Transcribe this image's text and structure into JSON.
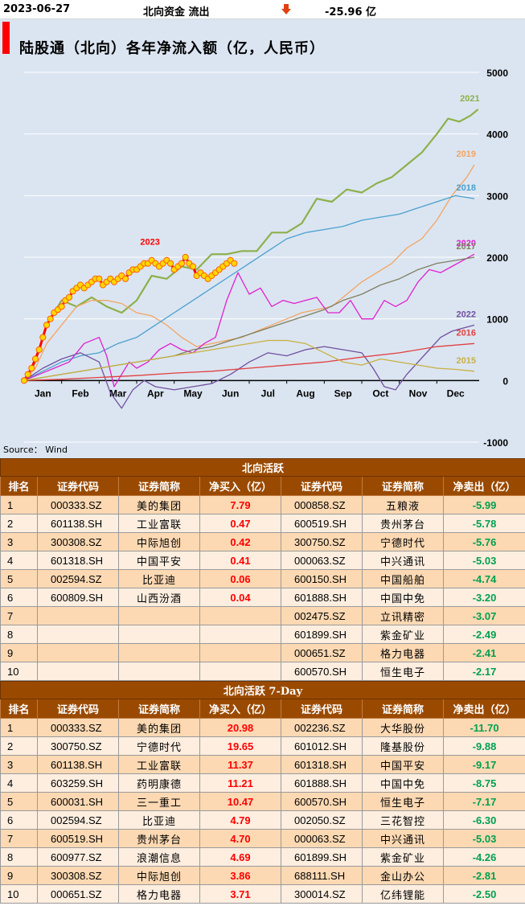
{
  "header": {
    "date": "2023-06-27",
    "label": "北向资金 流出",
    "value": "-25.96 亿",
    "arrow_color": "#e04010"
  },
  "chart": {
    "title": "陆股通（北向）各年净流入额（亿，人民币）",
    "source": "Source： Wind"
  },
  "chart_data": {
    "type": "line",
    "xlabel": "",
    "ylabel": "",
    "x_ticks": [
      "Jan",
      "Feb",
      "Mar",
      "Apr",
      "May",
      "Jun",
      "Jul",
      "Aug",
      "Sep",
      "Oct",
      "Nov",
      "Dec"
    ],
    "y_ticks": [
      "5000",
      "4000",
      "3000",
      "2000",
      "1000",
      "0",
      "-1000"
    ],
    "ylim": [
      -1000,
      5000
    ],
    "xlim": [
      0,
      12
    ],
    "grid": "horizontal",
    "series": [
      {
        "name": "2021",
        "color": "#8db04a",
        "width": 2.2,
        "x": [
          0,
          0.3,
          0.6,
          1,
          1.4,
          1.8,
          2.2,
          2.6,
          3,
          3.4,
          3.8,
          4.2,
          4.6,
          5,
          5.4,
          5.8,
          6.2,
          6.6,
          7,
          7.4,
          7.8,
          8.2,
          8.6,
          9,
          9.4,
          9.8,
          10.2,
          10.6,
          11,
          11.3,
          11.6,
          11.9,
          12.1
        ],
        "y": [
          0,
          300,
          900,
          1300,
          1200,
          1350,
          1200,
          1100,
          1300,
          1700,
          1650,
          1850,
          1800,
          2050,
          2050,
          2100,
          2100,
          2400,
          2400,
          2550,
          2950,
          2900,
          3100,
          3050,
          3200,
          3300,
          3500,
          3700,
          4000,
          4250,
          4200,
          4300,
          4400
        ]
      },
      {
        "name": "2019",
        "color": "#f4a460",
        "width": 1.3,
        "x": [
          0,
          0.3,
          0.6,
          1,
          1.4,
          1.8,
          2.2,
          2.6,
          3,
          3.4,
          3.8,
          4.2,
          4.6,
          5,
          5.4,
          5.8,
          6.2,
          6.6,
          7,
          7.4,
          7.8,
          8.2,
          8.6,
          9,
          9.4,
          9.8,
          10.2,
          10.6,
          11,
          11.4,
          11.8,
          12
        ],
        "y": [
          0,
          200,
          600,
          900,
          1200,
          1300,
          1300,
          1250,
          1100,
          1050,
          900,
          700,
          550,
          600,
          650,
          700,
          800,
          900,
          1000,
          1100,
          1150,
          1200,
          1400,
          1600,
          1750,
          1900,
          2150,
          2300,
          2600,
          3000,
          3300,
          3500
        ]
      },
      {
        "name": "2018",
        "color": "#4aa0d0",
        "width": 1.3,
        "x": [
          0,
          0.5,
          1,
          1.5,
          2,
          2.5,
          3,
          3.5,
          4,
          4.5,
          5,
          5.5,
          6,
          6.5,
          7,
          7.5,
          8,
          8.5,
          9,
          9.5,
          10,
          10.5,
          11,
          11.5,
          12
        ],
        "y": [
          0,
          150,
          300,
          400,
          450,
          600,
          700,
          900,
          1100,
          1300,
          1500,
          1700,
          1900,
          2100,
          2300,
          2400,
          2450,
          2500,
          2600,
          2650,
          2700,
          2800,
          2900,
          3000,
          2950
        ]
      },
      {
        "name": "2020",
        "color": "#e020d0",
        "width": 1.3,
        "x": [
          0,
          0.4,
          0.8,
          1.2,
          1.6,
          2,
          2.2,
          2.4,
          2.6,
          2.8,
          3,
          3.3,
          3.6,
          3.9,
          4.2,
          4.5,
          4.8,
          5.1,
          5.4,
          5.7,
          6,
          6.3,
          6.6,
          6.9,
          7.2,
          7.5,
          7.8,
          8.1,
          8.4,
          8.7,
          9,
          9.3,
          9.6,
          9.9,
          10.2,
          10.5,
          10.8,
          11.1,
          11.4,
          11.7,
          12
        ],
        "y": [
          0,
          100,
          200,
          300,
          600,
          700,
          400,
          -100,
          100,
          300,
          200,
          300,
          500,
          600,
          500,
          450,
          600,
          700,
          1300,
          1750,
          1400,
          1500,
          1200,
          1300,
          1250,
          1300,
          1350,
          1100,
          1100,
          1300,
          1000,
          1000,
          1300,
          1200,
          1300,
          1600,
          1800,
          1750,
          1850,
          1950,
          2050
        ]
      },
      {
        "name": "2017",
        "color": "#7f7f5f",
        "width": 1.3,
        "x": [
          0,
          0.5,
          1,
          1.5,
          2,
          2.5,
          3,
          3.5,
          4,
          4.5,
          5,
          5.5,
          6,
          6.5,
          7,
          7.5,
          8,
          8.5,
          9,
          9.5,
          10,
          10.5,
          11,
          11.5,
          12
        ],
        "y": [
          0,
          50,
          100,
          150,
          200,
          250,
          300,
          350,
          400,
          500,
          550,
          650,
          750,
          850,
          950,
          1050,
          1150,
          1300,
          1400,
          1550,
          1650,
          1800,
          1900,
          1950,
          2000
        ]
      },
      {
        "name": "2022",
        "color": "#7050a0",
        "width": 1.3,
        "x": [
          0,
          0.5,
          1,
          1.5,
          2,
          2.3,
          2.6,
          2.9,
          3.2,
          3.5,
          4,
          4.5,
          5,
          5.5,
          6,
          6.5,
          7,
          7.5,
          8,
          8.5,
          9,
          9.3,
          9.6,
          9.9,
          10.2,
          10.5,
          10.8,
          11.1,
          11.4,
          11.7,
          12
        ],
        "y": [
          0,
          200,
          350,
          450,
          300,
          -200,
          -450,
          -150,
          0,
          -100,
          -150,
          -100,
          -50,
          100,
          300,
          450,
          400,
          500,
          550,
          500,
          450,
          200,
          -100,
          -150,
          100,
          300,
          500,
          700,
          800,
          850,
          900
        ]
      },
      {
        "name": "2016",
        "color": "#e04040",
        "width": 1.3,
        "x": [
          0,
          1,
          2,
          3,
          4,
          5,
          6,
          7,
          8,
          9,
          10,
          11,
          12
        ],
        "y": [
          0,
          20,
          50,
          80,
          120,
          150,
          200,
          250,
          300,
          380,
          450,
          550,
          600
        ]
      },
      {
        "name": "2015",
        "color": "#c8b040",
        "width": 1.3,
        "x": [
          0,
          0.5,
          1,
          1.5,
          2,
          2.5,
          3,
          3.5,
          4,
          4.5,
          5,
          5.5,
          6,
          6.5,
          7,
          7.5,
          8,
          8.5,
          9,
          9.5,
          10,
          10.5,
          11,
          11.5,
          12
        ],
        "y": [
          0,
          50,
          100,
          150,
          200,
          250,
          300,
          350,
          400,
          450,
          500,
          550,
          600,
          650,
          650,
          600,
          450,
          300,
          250,
          350,
          300,
          250,
          200,
          180,
          150
        ]
      },
      {
        "name": "2023",
        "color": "#ff0000",
        "width": 3,
        "markers": true,
        "x": [
          0,
          0.1,
          0.2,
          0.3,
          0.4,
          0.5,
          0.6,
          0.7,
          0.8,
          0.9,
          1,
          1.1,
          1.2,
          1.3,
          1.4,
          1.5,
          1.6,
          1.7,
          1.8,
          1.9,
          2,
          2.1,
          2.2,
          2.3,
          2.4,
          2.5,
          2.6,
          2.7,
          2.8,
          2.9,
          3,
          3.1,
          3.2,
          3.3,
          3.4,
          3.5,
          3.6,
          3.7,
          3.8,
          3.9,
          4,
          4.1,
          4.2,
          4.3,
          4.4,
          4.5,
          4.6,
          4.7,
          4.8,
          4.9,
          5,
          5.1,
          5.2,
          5.3,
          5.4,
          5.5,
          5.6
        ],
        "y": [
          0,
          100,
          200,
          350,
          500,
          700,
          900,
          1000,
          1100,
          1150,
          1200,
          1300,
          1350,
          1450,
          1500,
          1550,
          1500,
          1550,
          1600,
          1650,
          1650,
          1550,
          1600,
          1650,
          1600,
          1650,
          1700,
          1650,
          1750,
          1800,
          1800,
          1850,
          1900,
          1900,
          1950,
          1900,
          1850,
          1900,
          1950,
          1900,
          1800,
          1850,
          1900,
          2000,
          1900,
          1850,
          1700,
          1750,
          1700,
          1650,
          1700,
          1750,
          1800,
          1850,
          1900,
          1950,
          1900
        ]
      }
    ]
  },
  "table1": {
    "title": "北向活跃",
    "headers": [
      "排名",
      "证券代码",
      "证券简称",
      "净买入（亿）",
      "证券代码",
      "证券简称",
      "净卖出（亿）"
    ],
    "rows": [
      [
        "1",
        "000333.SZ",
        "美的集团",
        "7.79",
        "000858.SZ",
        "五粮液",
        "-5.99"
      ],
      [
        "2",
        "601138.SH",
        "工业富联",
        "0.47",
        "600519.SH",
        "贵州茅台",
        "-5.78"
      ],
      [
        "3",
        "300308.SZ",
        "中际旭创",
        "0.42",
        "300750.SZ",
        "宁德时代",
        "-5.76"
      ],
      [
        "4",
        "601318.SH",
        "中国平安",
        "0.41",
        "000063.SZ",
        "中兴通讯",
        "-5.03"
      ],
      [
        "5",
        "002594.SZ",
        "比亚迪",
        "0.06",
        "600150.SH",
        "中国船舶",
        "-4.74"
      ],
      [
        "6",
        "600809.SH",
        "山西汾酒",
        "0.04",
        "601888.SH",
        "中国中免",
        "-3.20"
      ],
      [
        "7",
        "",
        "",
        "",
        "002475.SZ",
        "立讯精密",
        "-3.07"
      ],
      [
        "8",
        "",
        "",
        "",
        "601899.SH",
        "紫金矿业",
        "-2.49"
      ],
      [
        "9",
        "",
        "",
        "",
        "000651.SZ",
        "格力电器",
        "-2.41"
      ],
      [
        "10",
        "",
        "",
        "",
        "600570.SH",
        "恒生电子",
        "-2.17"
      ]
    ]
  },
  "table2": {
    "title": "北向活跃 7-Day",
    "headers": [
      "排名",
      "证券代码",
      "证券简称",
      "净买入（亿）",
      "证券代码",
      "证券简称",
      "净卖出（亿）"
    ],
    "rows": [
      [
        "1",
        "000333.SZ",
        "美的集团",
        "20.98",
        "002236.SZ",
        "大华股份",
        "-11.70"
      ],
      [
        "2",
        "300750.SZ",
        "宁德时代",
        "19.65",
        "601012.SH",
        "隆基股份",
        "-9.88"
      ],
      [
        "3",
        "601138.SH",
        "工业富联",
        "11.37",
        "601318.SH",
        "中国平安",
        "-9.17"
      ],
      [
        "4",
        "603259.SH",
        "药明康德",
        "11.21",
        "601888.SH",
        "中国中免",
        "-8.75"
      ],
      [
        "5",
        "600031.SH",
        "三一重工",
        "10.47",
        "600570.SH",
        "恒生电子",
        "-7.17"
      ],
      [
        "6",
        "002594.SZ",
        "比亚迪",
        "4.79",
        "002050.SZ",
        "三花智控",
        "-6.30"
      ],
      [
        "7",
        "600519.SH",
        "贵州茅台",
        "4.70",
        "000063.SZ",
        "中兴通讯",
        "-5.03"
      ],
      [
        "8",
        "600977.SZ",
        "浪潮信息",
        "4.69",
        "601899.SH",
        "紫金矿业",
        "-4.26"
      ],
      [
        "9",
        "300308.SZ",
        "中际旭创",
        "3.86",
        "688111.SH",
        "金山办公",
        "-2.81"
      ],
      [
        "10",
        "000651.SZ",
        "格力电器",
        "3.71",
        "300014.SZ",
        "亿纬锂能",
        "-2.50"
      ]
    ]
  }
}
